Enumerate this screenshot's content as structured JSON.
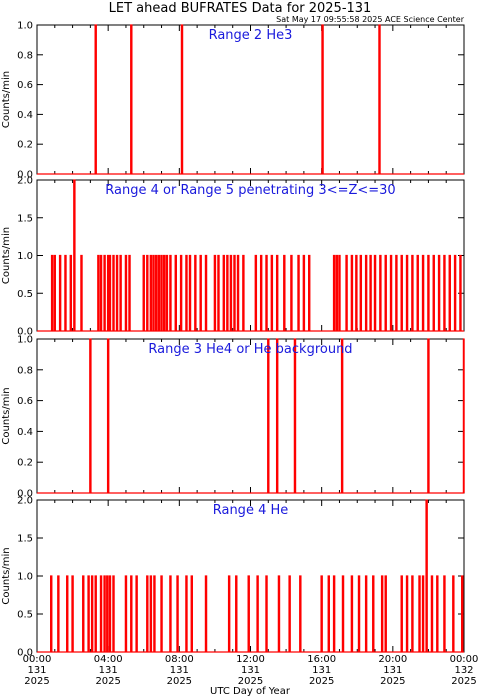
{
  "header": {
    "title": "LET ahead BUFRATES Data for 2025-131",
    "timestamp": "Sat May 17 09:55:58 2025 ACE Science Center"
  },
  "colors": {
    "series": "#ff0000",
    "label": "#1a1adc",
    "axis": "#000000"
  },
  "chart_data": {
    "type": "line",
    "xlabel": "UTC Day of Year",
    "xlim": [
      0,
      24
    ],
    "x_ticks": [
      {
        "l1": "00:00",
        "l2": "131",
        "l3": "2025"
      },
      {
        "l1": "04:00",
        "l2": "131",
        "l3": "2025"
      },
      {
        "l1": "08:00",
        "l2": "131",
        "l3": "2025"
      },
      {
        "l1": "12:00",
        "l2": "131",
        "l3": "2025"
      },
      {
        "l1": "16:00",
        "l2": "131",
        "l3": "2025"
      },
      {
        "l1": "20:00",
        "l2": "131",
        "l3": "2025"
      },
      {
        "l1": "00:00",
        "l2": "132",
        "l3": "2025"
      }
    ],
    "panels": [
      {
        "label": "Range 2 He3",
        "ylabel": "Counts/min",
        "ylim": [
          0,
          1.0
        ],
        "yticks": [
          "0.0",
          "0.2",
          "0.4",
          "0.6",
          "0.8",
          "1.0"
        ],
        "yvals": [
          0,
          0.2,
          0.4,
          0.6,
          0.8,
          1.0
        ],
        "spikes": [
          [
            3.3,
            1
          ],
          [
            5.3,
            1
          ],
          [
            8.15,
            1
          ],
          [
            16.05,
            1
          ],
          [
            19.25,
            1
          ]
        ]
      },
      {
        "label": "Range 4 or Range 5 penetrating 3<=Z<=30",
        "ylabel": "Counts/min",
        "ylim": [
          0,
          2.0
        ],
        "yticks": [
          "0.0",
          "0.5",
          "1.0",
          "1.5",
          "2.0"
        ],
        "yvals": [
          0,
          0.5,
          1.0,
          1.5,
          2.0
        ],
        "spikes": [
          [
            0.85,
            1
          ],
          [
            1.0,
            1
          ],
          [
            1.3,
            1
          ],
          [
            1.6,
            1
          ],
          [
            1.9,
            1
          ],
          [
            2.1,
            2
          ],
          [
            2.5,
            1
          ],
          [
            3.45,
            1
          ],
          [
            3.6,
            1
          ],
          [
            3.8,
            1
          ],
          [
            4.0,
            1
          ],
          [
            4.1,
            1
          ],
          [
            4.3,
            1
          ],
          [
            4.5,
            1
          ],
          [
            4.7,
            1
          ],
          [
            5.0,
            1
          ],
          [
            5.2,
            1
          ],
          [
            6.0,
            1
          ],
          [
            6.2,
            1
          ],
          [
            6.4,
            1
          ],
          [
            6.55,
            1
          ],
          [
            6.7,
            1
          ],
          [
            6.85,
            1
          ],
          [
            7.0,
            1
          ],
          [
            7.15,
            1
          ],
          [
            7.3,
            1
          ],
          [
            7.5,
            1
          ],
          [
            7.8,
            1
          ],
          [
            8.1,
            1
          ],
          [
            8.4,
            1
          ],
          [
            8.6,
            1
          ],
          [
            8.9,
            1
          ],
          [
            9.2,
            1
          ],
          [
            9.5,
            1
          ],
          [
            10.0,
            1
          ],
          [
            10.2,
            1
          ],
          [
            10.5,
            1
          ],
          [
            10.7,
            1
          ],
          [
            10.9,
            1
          ],
          [
            11.1,
            1
          ],
          [
            11.3,
            1
          ],
          [
            11.6,
            1
          ],
          [
            12.3,
            1
          ],
          [
            12.6,
            1
          ],
          [
            12.9,
            1
          ],
          [
            13.2,
            1
          ],
          [
            13.5,
            1
          ],
          [
            13.9,
            1
          ],
          [
            14.3,
            1
          ],
          [
            14.7,
            1
          ],
          [
            15.0,
            1
          ],
          [
            15.3,
            1
          ],
          [
            16.7,
            1
          ],
          [
            16.85,
            1
          ],
          [
            17.0,
            1
          ],
          [
            17.4,
            1
          ],
          [
            17.7,
            1
          ],
          [
            17.95,
            1
          ],
          [
            18.2,
            1
          ],
          [
            18.5,
            1
          ],
          [
            18.75,
            1
          ],
          [
            19.0,
            1
          ],
          [
            19.3,
            1
          ],
          [
            19.6,
            1
          ],
          [
            19.9,
            1
          ],
          [
            20.2,
            1
          ],
          [
            20.5,
            1
          ],
          [
            20.8,
            1
          ],
          [
            21.1,
            1
          ],
          [
            21.4,
            1
          ],
          [
            21.7,
            1
          ],
          [
            22.0,
            1
          ],
          [
            22.3,
            1
          ],
          [
            22.6,
            1
          ],
          [
            22.9,
            1
          ],
          [
            23.2,
            1
          ],
          [
            23.5,
            1
          ],
          [
            23.8,
            1
          ]
        ]
      },
      {
        "label": "Range 3 He4 or He background",
        "ylabel": "Counts/min",
        "ylim": [
          0,
          1.0
        ],
        "yticks": [
          "0.0",
          "0.2",
          "0.4",
          "0.6",
          "0.8",
          "1.0"
        ],
        "yvals": [
          0,
          0.2,
          0.4,
          0.6,
          0.8,
          1.0
        ],
        "spikes": [
          [
            3.0,
            1
          ],
          [
            4.0,
            1
          ],
          [
            13.0,
            1
          ],
          [
            13.5,
            1
          ],
          [
            14.5,
            1
          ],
          [
            17.15,
            1
          ],
          [
            22.0,
            1
          ],
          [
            24.0,
            1
          ]
        ]
      },
      {
        "label": "Range 4 He",
        "ylabel": "Counts/min",
        "ylim": [
          0,
          2.0
        ],
        "yticks": [
          "0.0",
          "0.5",
          "1.0",
          "1.5",
          "2.0"
        ],
        "yvals": [
          0,
          0.5,
          1.0,
          1.5,
          2.0
        ],
        "spikes": [
          [
            0.8,
            1
          ],
          [
            1.2,
            1
          ],
          [
            1.7,
            1
          ],
          [
            2.0,
            1
          ],
          [
            2.6,
            1
          ],
          [
            2.9,
            1
          ],
          [
            3.1,
            1
          ],
          [
            3.3,
            1
          ],
          [
            3.6,
            1
          ],
          [
            3.8,
            1
          ],
          [
            3.95,
            1
          ],
          [
            4.1,
            1
          ],
          [
            4.3,
            1
          ],
          [
            5.0,
            1
          ],
          [
            5.3,
            1
          ],
          [
            5.6,
            1
          ],
          [
            6.2,
            1
          ],
          [
            6.4,
            1
          ],
          [
            6.6,
            1
          ],
          [
            7.0,
            1
          ],
          [
            7.5,
            1
          ],
          [
            7.9,
            1
          ],
          [
            8.4,
            1
          ],
          [
            8.7,
            1
          ],
          [
            9.5,
            1
          ],
          [
            10.8,
            1
          ],
          [
            11.2,
            1
          ],
          [
            11.9,
            1
          ],
          [
            12.4,
            1
          ],
          [
            12.9,
            1
          ],
          [
            13.6,
            1
          ],
          [
            14.2,
            1
          ],
          [
            14.8,
            1
          ],
          [
            16.0,
            1
          ],
          [
            16.4,
            1
          ],
          [
            16.7,
            1
          ],
          [
            17.2,
            1
          ],
          [
            17.7,
            1
          ],
          [
            18.1,
            1
          ],
          [
            18.5,
            1
          ],
          [
            18.9,
            1
          ],
          [
            19.4,
            1
          ],
          [
            19.6,
            1
          ],
          [
            20.5,
            1
          ],
          [
            20.8,
            1
          ],
          [
            21.1,
            1
          ],
          [
            21.5,
            1
          ],
          [
            21.7,
            1
          ],
          [
            21.9,
            2
          ],
          [
            22.2,
            1
          ],
          [
            22.5,
            1
          ],
          [
            22.9,
            1
          ],
          [
            23.4,
            1
          ],
          [
            23.9,
            1
          ]
        ]
      }
    ]
  }
}
